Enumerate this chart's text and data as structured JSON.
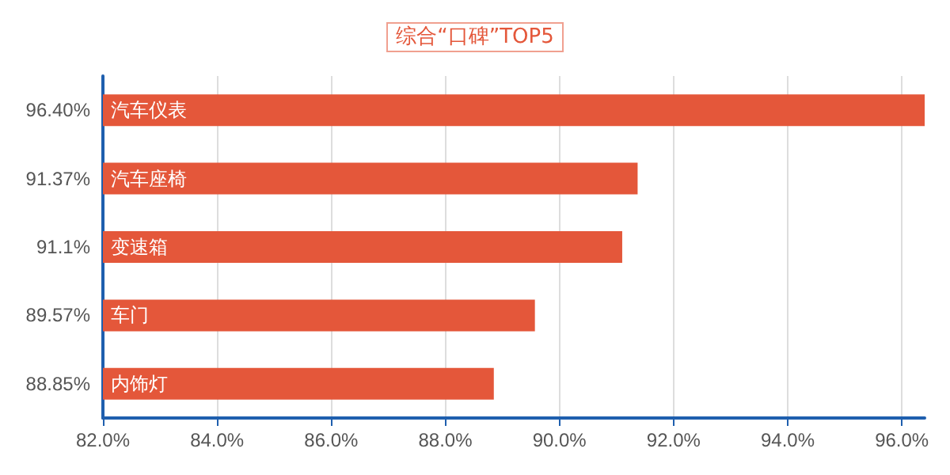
{
  "chart_data": {
    "type": "bar",
    "orientation": "horizontal",
    "title": "综合“口碑”TOP5",
    "categories": [
      "汽车仪表",
      "汽车座椅",
      "变速箱",
      "车门",
      "内饰灯"
    ],
    "values": [
      96.4,
      91.37,
      91.1,
      89.57,
      88.85
    ],
    "value_labels": [
      "96.40%",
      "91.37%",
      "91.1%",
      "89.57%",
      "88.85%"
    ],
    "color": "#e4573a",
    "xlim": [
      82,
      96.4
    ],
    "xticks": [
      {
        "value": 82,
        "label": "82.0%"
      },
      {
        "value": 84,
        "label": "84.0%"
      },
      {
        "value": 86,
        "label": "86.0%"
      },
      {
        "value": 88,
        "label": "88.0%"
      },
      {
        "value": 90,
        "label": "90.0%"
      },
      {
        "value": 92,
        "label": "92.0%"
      },
      {
        "value": 94,
        "label": "94.0%"
      },
      {
        "value": 96,
        "label": "96.0%"
      }
    ],
    "grid": "x"
  }
}
